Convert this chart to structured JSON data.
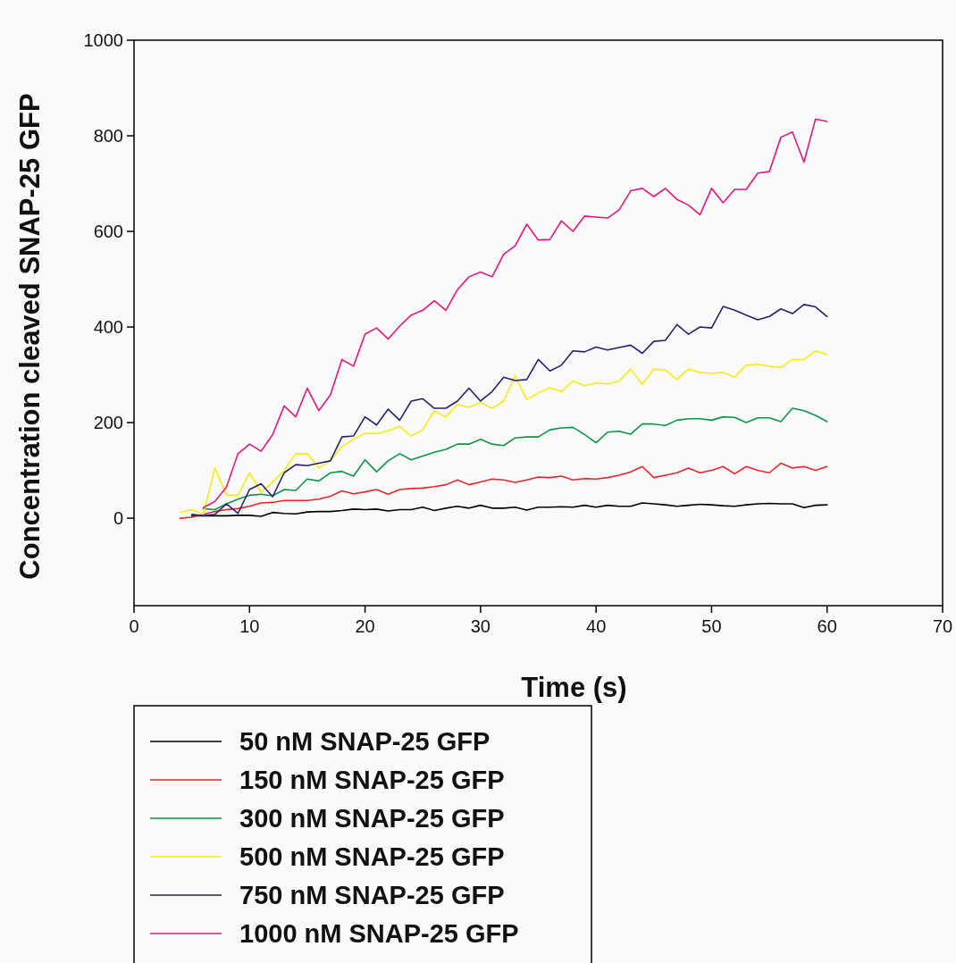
{
  "chart_data": {
    "type": "line",
    "xlabel": "Time (s)",
    "ylabel": "Concentration cleaved SNAP-25 GFP",
    "xlim": [
      0,
      70
    ],
    "xticks": [
      0,
      10,
      20,
      30,
      40,
      50,
      60,
      70
    ],
    "ylim": [
      -183,
      1000
    ],
    "yticks": [
      0,
      200,
      400,
      600,
      800,
      1000
    ],
    "grid": false,
    "legend": "bottom",
    "marker": "none",
    "line_style": "solid",
    "series": [
      {
        "name": "50 nM SNAP-25 GFP",
        "color": "#000000",
        "x": [
          5,
          6,
          7,
          8,
          9,
          10,
          11,
          12,
          13,
          14,
          15,
          16,
          17,
          18,
          19,
          20,
          21,
          22,
          23,
          24,
          25,
          26,
          27,
          28,
          29,
          30,
          31,
          32,
          33,
          34,
          35,
          36,
          37,
          38,
          39,
          40,
          41,
          42,
          43,
          44,
          45,
          46,
          47,
          48,
          49,
          50,
          51,
          52,
          53,
          54,
          55,
          56,
          57,
          58,
          59,
          60
        ],
        "values": [
          5,
          5,
          5,
          5,
          6,
          6,
          4,
          12,
          10,
          9,
          13,
          14,
          14,
          16,
          19,
          18,
          19,
          15,
          18,
          18,
          23,
          16,
          21,
          25,
          21,
          27,
          21,
          21,
          23,
          17,
          23,
          23,
          24,
          23,
          27,
          23,
          27,
          25,
          25,
          32,
          30,
          28,
          25,
          27,
          29,
          28,
          26,
          25,
          28,
          30,
          31,
          30,
          30,
          22,
          27,
          28
        ]
      },
      {
        "name": "150 nM SNAP-25 GFP",
        "color": "#e8262a",
        "x": [
          4,
          5,
          6,
          7,
          8,
          9,
          10,
          11,
          12,
          13,
          14,
          15,
          16,
          17,
          18,
          19,
          20,
          21,
          22,
          23,
          24,
          25,
          26,
          27,
          28,
          29,
          30,
          31,
          32,
          33,
          34,
          35,
          36,
          37,
          38,
          39,
          40,
          41,
          42,
          43,
          44,
          45,
          46,
          47,
          48,
          49,
          50,
          51,
          52,
          53,
          54,
          55,
          56,
          57,
          58,
          59,
          60
        ],
        "values": [
          0,
          2,
          8,
          14,
          18,
          20,
          25,
          32,
          33,
          37,
          37,
          37,
          40,
          46,
          57,
          51,
          55,
          60,
          50,
          60,
          62,
          63,
          66,
          70,
          80,
          70,
          76,
          82,
          80,
          75,
          80,
          86,
          85,
          88,
          80,
          83,
          82,
          85,
          90,
          97,
          108,
          85,
          90,
          95,
          105,
          95,
          100,
          108,
          93,
          108,
          100,
          95,
          115,
          105,
          108,
          100,
          108
        ]
      },
      {
        "name": "300 nM SNAP-25 GFP",
        "color": "#0e9447",
        "x": [
          6,
          7,
          8,
          9,
          10,
          11,
          12,
          13,
          14,
          15,
          16,
          17,
          18,
          19,
          20,
          21,
          22,
          23,
          24,
          25,
          26,
          27,
          28,
          29,
          30,
          31,
          32,
          33,
          34,
          35,
          36,
          37,
          38,
          39,
          40,
          41,
          42,
          43,
          44,
          45,
          46,
          47,
          48,
          49,
          50,
          51,
          52,
          53,
          54,
          55,
          56,
          57,
          58,
          59,
          60
        ],
        "values": [
          20,
          18,
          30,
          40,
          48,
          50,
          47,
          60,
          58,
          82,
          78,
          95,
          98,
          88,
          122,
          97,
          120,
          135,
          122,
          130,
          138,
          144,
          155,
          155,
          165,
          155,
          152,
          168,
          170,
          170,
          185,
          189,
          190,
          175,
          158,
          180,
          182,
          176,
          197,
          197,
          194,
          205,
          208,
          208,
          205,
          212,
          211,
          200,
          210,
          210,
          202,
          230,
          225,
          215,
          202
        ]
      },
      {
        "name": "500 nM SNAP-25 GFP",
        "color": "#f5ec13",
        "x": [
          4,
          5,
          6,
          7,
          8,
          9,
          10,
          11,
          12,
          13,
          14,
          15,
          16,
          17,
          18,
          19,
          20,
          21,
          22,
          23,
          24,
          25,
          26,
          27,
          28,
          29,
          30,
          31,
          32,
          33,
          34,
          35,
          36,
          37,
          38,
          39,
          40,
          41,
          42,
          43,
          44,
          45,
          46,
          47,
          48,
          49,
          50,
          51,
          52,
          53,
          54,
          55,
          56,
          57,
          58,
          59,
          60
        ],
        "values": [
          12,
          18,
          8,
          105,
          48,
          48,
          95,
          55,
          75,
          100,
          135,
          135,
          105,
          120,
          150,
          165,
          178,
          177,
          183,
          192,
          172,
          185,
          225,
          212,
          238,
          232,
          242,
          230,
          245,
          298,
          248,
          262,
          273,
          265,
          287,
          277,
          283,
          281,
          287,
          312,
          280,
          312,
          310,
          290,
          312,
          305,
          303,
          305,
          295,
          320,
          322,
          318,
          315,
          332,
          332,
          350,
          342
        ]
      },
      {
        "name": "750 nM SNAP-25 GFP",
        "color": "#25216e",
        "x": [
          5,
          6,
          7,
          8,
          9,
          10,
          11,
          12,
          13,
          14,
          15,
          16,
          17,
          18,
          19,
          20,
          21,
          22,
          23,
          24,
          25,
          26,
          27,
          28,
          29,
          30,
          31,
          32,
          33,
          34,
          35,
          36,
          37,
          38,
          39,
          40,
          41,
          42,
          43,
          44,
          45,
          46,
          47,
          48,
          49,
          50,
          51,
          52,
          53,
          54,
          55,
          56,
          57,
          58,
          59,
          60
        ],
        "values": [
          8,
          5,
          8,
          30,
          10,
          60,
          72,
          45,
          95,
          112,
          110,
          115,
          120,
          170,
          172,
          212,
          195,
          228,
          205,
          245,
          250,
          230,
          230,
          245,
          272,
          245,
          265,
          295,
          288,
          290,
          332,
          308,
          320,
          350,
          348,
          358,
          352,
          357,
          362,
          345,
          370,
          372,
          405,
          385,
          400,
          398,
          443,
          435,
          425,
          415,
          422,
          438,
          428,
          447,
          442,
          422
        ]
      },
      {
        "name": "1000 nM SNAP-25 GFP",
        "color": "#e0197a",
        "x": [
          6,
          7,
          8,
          9,
          10,
          11,
          12,
          13,
          14,
          15,
          16,
          17,
          18,
          19,
          20,
          21,
          22,
          23,
          24,
          25,
          26,
          27,
          28,
          29,
          30,
          31,
          32,
          33,
          34,
          35,
          36,
          37,
          38,
          39,
          40,
          41,
          42,
          43,
          44,
          45,
          46,
          47,
          48,
          49,
          50,
          51,
          52,
          53,
          54,
          55,
          56,
          57,
          58,
          59,
          60
        ],
        "values": [
          22,
          35,
          65,
          135,
          155,
          140,
          175,
          235,
          212,
          272,
          225,
          258,
          332,
          318,
          385,
          398,
          375,
          402,
          425,
          435,
          455,
          435,
          478,
          505,
          515,
          505,
          552,
          570,
          615,
          582,
          583,
          622,
          600,
          632,
          630,
          628,
          645,
          685,
          690,
          673,
          690,
          667,
          655,
          635,
          690,
          660,
          688,
          688,
          722,
          725,
          797,
          808,
          745,
          835,
          830
        ]
      }
    ]
  }
}
